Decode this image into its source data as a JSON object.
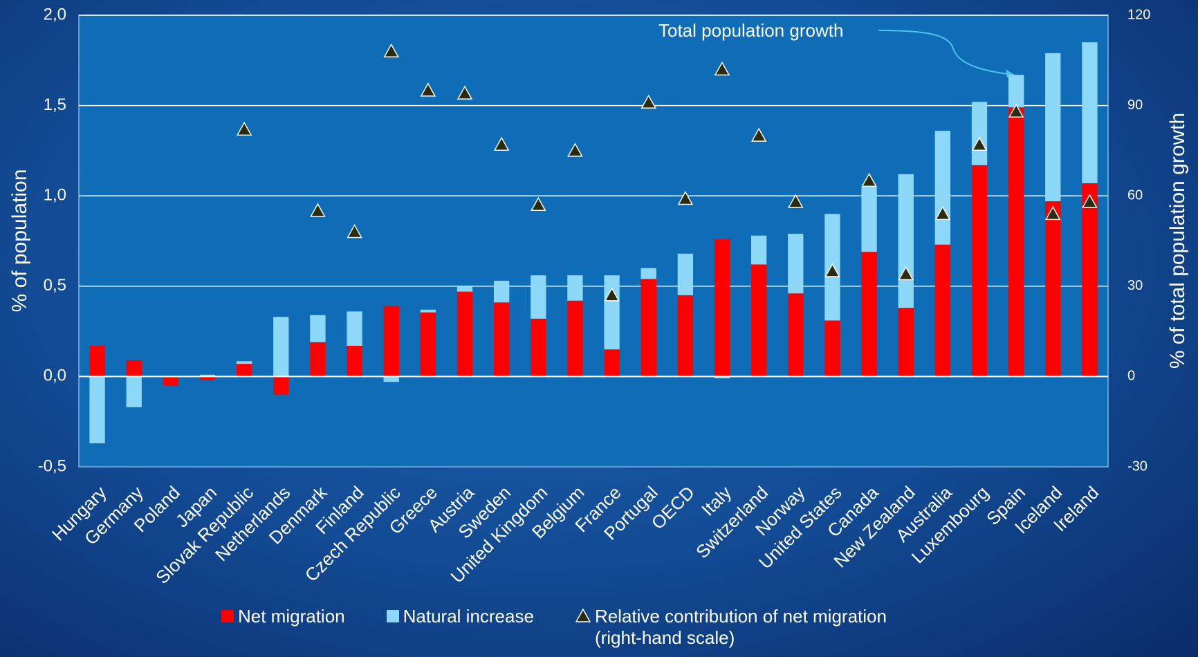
{
  "chart_data": {
    "type": "bar",
    "annotation": "Total population growth",
    "ylabel": "% of population",
    "y2label": "% of total population growth",
    "categories": [
      "Hungary",
      "Germany",
      "Poland",
      "Japan",
      "Slovak Republic",
      "Netherlands",
      "Denmark",
      "Finland",
      "Czech Republic",
      "Greece",
      "Austria",
      "Sweden",
      "United Kingdom",
      "Belgium",
      "France",
      "Portugal",
      "OECD",
      "Italy",
      "Switzerland",
      "Norway",
      "United States",
      "Canada",
      "New Zealand",
      "Australia",
      "Luxembourg",
      "Spain",
      "Iceland",
      "Ireland"
    ],
    "series": [
      {
        "name": "Net migration",
        "color": "#ff0000",
        "values": [
          0.17,
          0.09,
          -0.05,
          -0.02,
          0.07,
          -0.1,
          0.19,
          0.17,
          0.39,
          0.355,
          0.47,
          0.41,
          0.32,
          0.42,
          0.15,
          0.54,
          0.45,
          0.76,
          0.62,
          0.46,
          0.31,
          0.69,
          0.38,
          0.73,
          1.17,
          1.49,
          0.97,
          1.07
        ]
      },
      {
        "name": "Natural increase",
        "color": "#8dd8f8",
        "values": [
          -0.37,
          -0.17,
          0,
          0.01,
          0.015,
          0.33,
          0.15,
          0.19,
          -0.03,
          0.015,
          0.03,
          0.12,
          0.24,
          0.14,
          0.41,
          0.06,
          0.23,
          -0.01,
          0.16,
          0.33,
          0.59,
          0.36,
          0.74,
          0.63,
          0.35,
          0.18,
          0.82,
          0.78
        ]
      },
      {
        "name": "Relative contribution of net migration (right-hand scale)",
        "color": "#2b2b10",
        "axis": "y2",
        "marker": "triangle",
        "values": [
          null,
          null,
          null,
          null,
          82,
          null,
          55,
          48,
          108,
          95,
          94,
          77,
          57,
          75,
          27,
          91,
          59,
          102,
          80,
          58,
          35,
          65,
          34,
          54,
          77,
          88,
          54,
          58
        ]
      }
    ],
    "ylim": [
      -0.5,
      2.0
    ],
    "yticks": [
      {
        "value": -0.5,
        "label": "-0,5"
      },
      {
        "value": 0,
        "label": "0,0"
      },
      {
        "value": 0.5,
        "label": "0,5"
      },
      {
        "value": 1.0,
        "label": "1,0"
      },
      {
        "value": 1.5,
        "label": "1,5"
      },
      {
        "value": 2.0,
        "label": "2,0"
      }
    ],
    "y2lim": [
      -30,
      120
    ],
    "y2ticks": [
      -30,
      0,
      30,
      60,
      90,
      120
    ],
    "grid": true
  }
}
